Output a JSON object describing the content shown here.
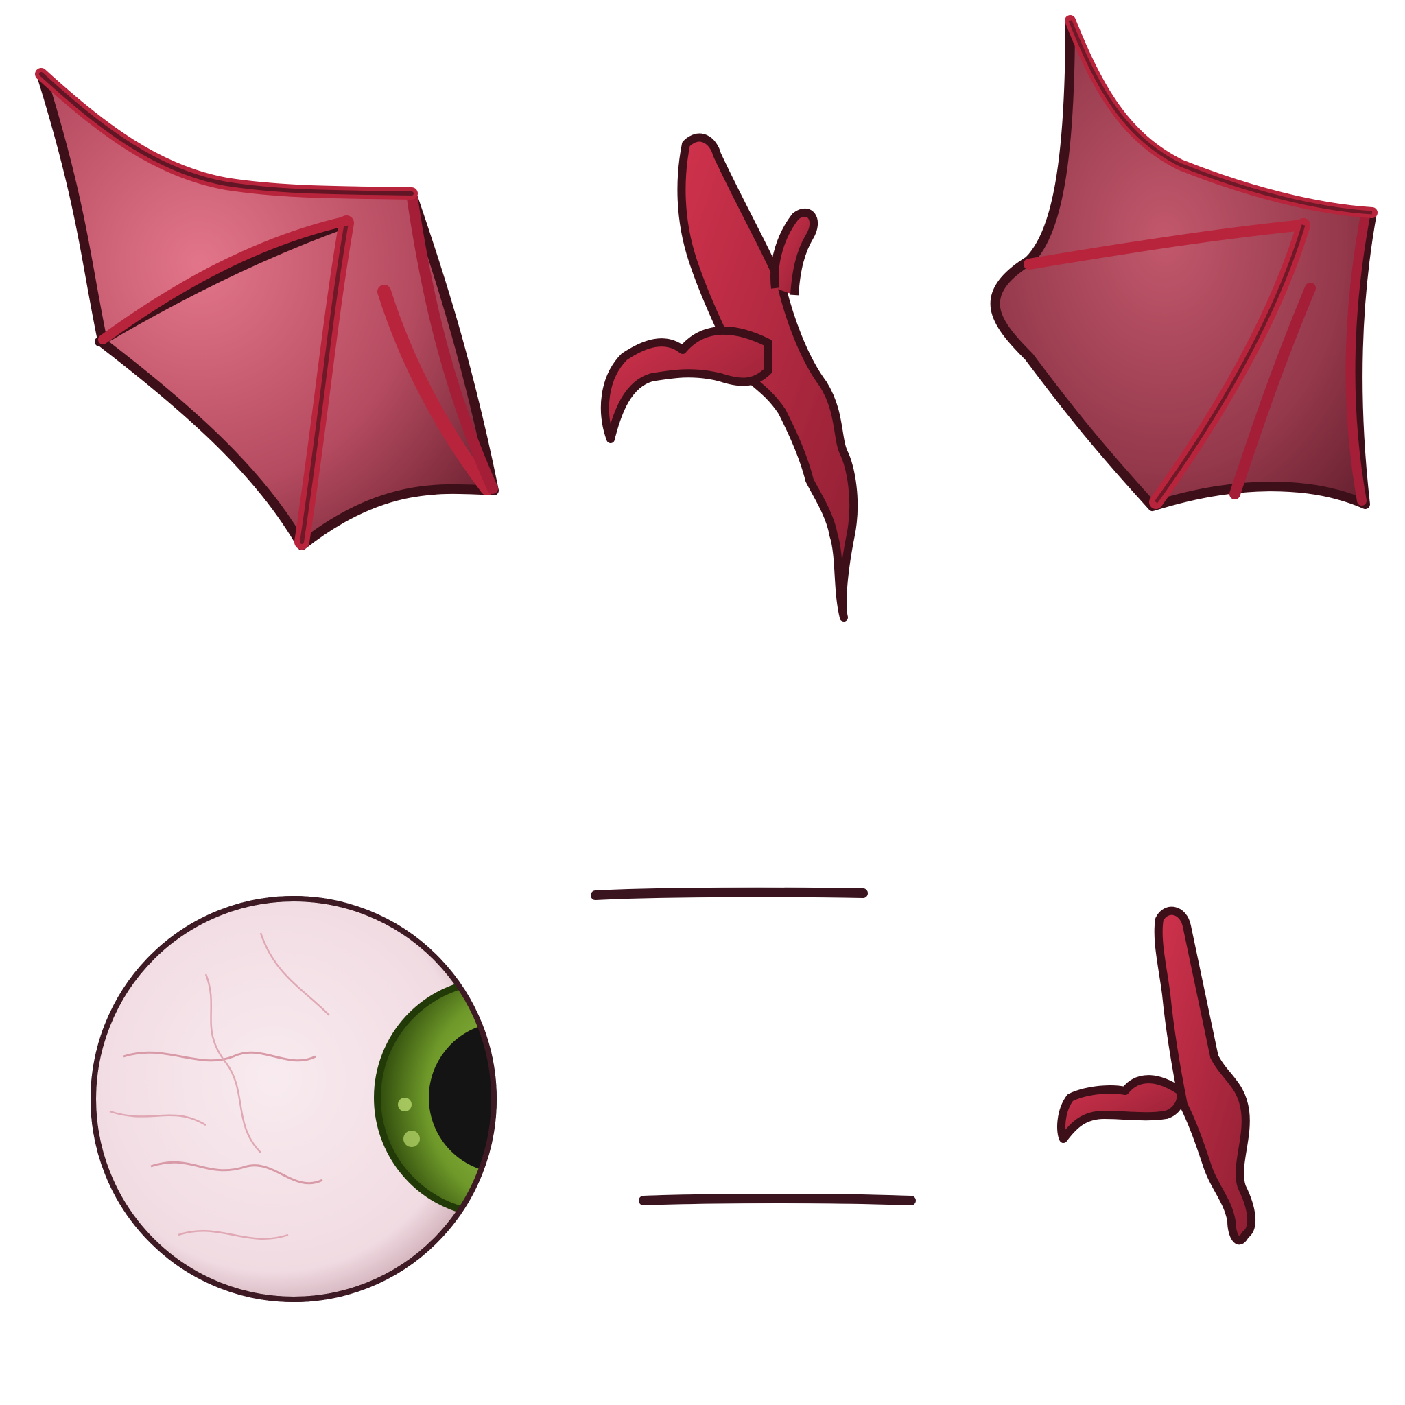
{
  "sprite_sheet": {
    "background": "#ffffff",
    "sprites": [
      {
        "name": "left-bat-wing",
        "kind": "wing"
      },
      {
        "name": "wing-bone-arm-top",
        "kind": "wing-arm"
      },
      {
        "name": "right-bat-wing",
        "kind": "wing"
      },
      {
        "name": "eyeball",
        "kind": "eye",
        "iris_color": "#6f9a2a"
      },
      {
        "name": "eyelid-line-top",
        "kind": "line"
      },
      {
        "name": "eyelid-line-bottom",
        "kind": "line"
      },
      {
        "name": "wing-bone-arm-bottom",
        "kind": "wing-arm"
      }
    ]
  },
  "colors": {
    "outline": "#3d1019",
    "membrane_light": "#d9687e",
    "membrane_dark": "#7c2b3b",
    "bone": "#b8243c",
    "bone_shadow": "#7a1a2b",
    "sclera": "#f4e3e8",
    "vein": "#d99aa8",
    "iris": "#6f9a2a",
    "iris_dark": "#2f4a0c",
    "pupil": "#141414",
    "line": "#3a1520"
  }
}
